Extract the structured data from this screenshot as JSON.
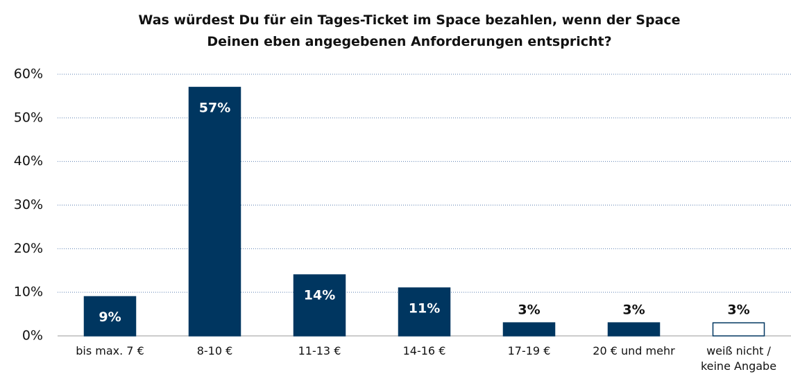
{
  "chart_data": {
    "type": "bar",
    "title": "Was würdest Du für ein Tages-Ticket im Space bezahlen, wenn der Space\nDeinen eben angegebenen Anforderungen entspricht?",
    "categories": [
      "bis max. 7 €",
      "8-10 €",
      "11-13 €",
      "14-16 €",
      "17-19 €",
      "20 € und mehr",
      "weiß nicht /\nkeine Angabe"
    ],
    "values": [
      9,
      57,
      14,
      11,
      3,
      3,
      3
    ],
    "value_labels": [
      "9%",
      "57%",
      "14%",
      "11%",
      "3%",
      "3%",
      "3%"
    ],
    "colors": [
      "#003660",
      "#003660",
      "#003660",
      "#003660",
      "#003660",
      "#003660",
      "#ffffff"
    ],
    "edgecolor": "#003660",
    "ylim": [
      0,
      60
    ],
    "yticks": [
      {
        "value": 0,
        "label": "0%"
      },
      {
        "value": 10,
        "label": "10%"
      },
      {
        "value": 20,
        "label": "20%"
      },
      {
        "value": 30,
        "label": "30%"
      },
      {
        "value": 40,
        "label": "40%"
      },
      {
        "value": 50,
        "label": "50%"
      },
      {
        "value": 60,
        "label": "60%"
      }
    ],
    "grid": true
  }
}
